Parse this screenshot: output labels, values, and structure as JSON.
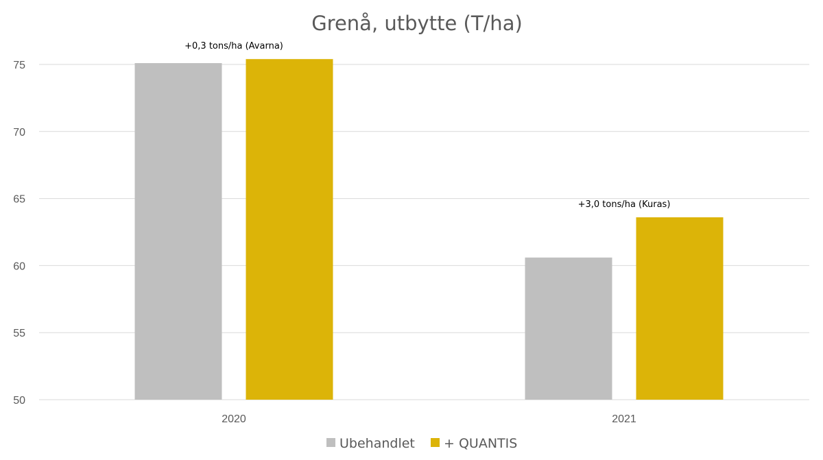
{
  "chart_data": {
    "type": "bar",
    "title": "Grenå, utbytte  (T/ha)",
    "xlabel": "",
    "ylabel": "",
    "categories": [
      "2020",
      "2021"
    ],
    "series": [
      {
        "name": "Ubehandlet",
        "color": "#bfbfbf",
        "values": [
          75.1,
          60.6
        ]
      },
      {
        "name": "+ QUANTIS",
        "color": "#dcb408",
        "values": [
          75.4,
          63.6
        ]
      }
    ],
    "annotations": [
      "+0,3 tons/ha (Avarna)",
      "+3,0 tons/ha (Kuras)"
    ],
    "ylim": [
      50,
      75
    ],
    "yticks": [
      "50",
      "55",
      "60",
      "65",
      "70",
      "75"
    ],
    "grid": true,
    "legend_position": "bottom"
  }
}
